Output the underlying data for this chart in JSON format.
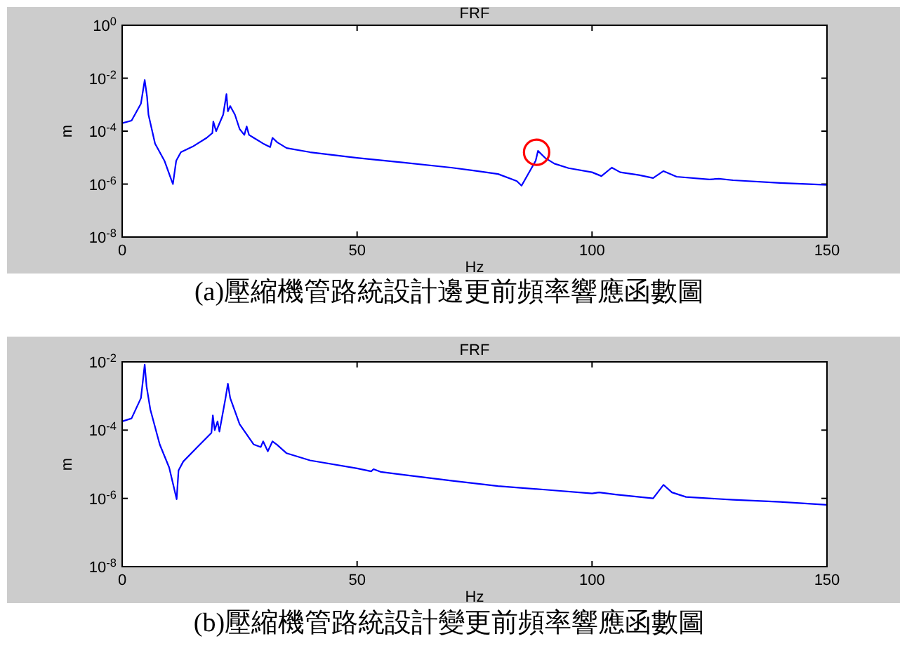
{
  "chart_data": [
    {
      "type": "line",
      "title": "FRF",
      "xlabel": "Hz",
      "ylabel": "m",
      "log": "y",
      "grid": false,
      "marker": "none",
      "line_style": "solid",
      "xlim": [
        0,
        150
      ],
      "xticks": [
        0,
        50,
        100,
        150
      ],
      "ylim": [
        1e-08,
        1
      ],
      "yticks": [
        {
          "value": 1e-08,
          "label": "10$^{-8}$"
        },
        {
          "value": 1e-06,
          "label": "10$^{-6}$"
        },
        {
          "value": 0.0001,
          "label": "10$^{-4}$"
        },
        {
          "value": 0.01,
          "label": "10$^{-2}$"
        },
        {
          "value": 1,
          "label": "10$^{0}$"
        }
      ],
      "x": [
        0,
        2,
        4,
        4.8,
        5.3,
        5.6,
        7,
        9,
        10.8,
        11.5,
        12.5,
        15,
        18,
        19.2,
        19.4,
        20,
        21.5,
        22.2,
        22.5,
        23,
        24,
        25,
        26,
        26.5,
        27,
        28,
        30,
        31.5,
        32,
        33,
        35,
        40,
        50,
        60,
        70,
        75,
        80,
        84,
        85,
        88,
        88.5,
        90,
        92,
        95,
        100,
        102,
        104.2,
        106,
        110,
        113,
        115.2,
        118,
        125,
        127,
        130,
        140,
        150
      ],
      "series": [
        {
          "color": "#0000ff",
          "values": [
            0.0002,
            0.00025,
            0.0011,
            0.0085,
            0.002,
            0.00042,
            3.4e-05,
            7.6e-06,
            1e-06,
            7.6e-06,
            1.6e-05,
            2.6e-05,
            5.6e-05,
            8.5e-05,
            0.00023,
            0.0001,
            0.00042,
            0.0025,
            0.00056,
            0.00089,
            0.00042,
            0.00012,
            7.2e-05,
            0.00015,
            7.2e-05,
            5.6e-05,
            3.4e-05,
            2.5e-05,
            5.6e-05,
            3.8e-05,
            2.3e-05,
            1.6e-05,
            9.8e-06,
            6.5e-06,
            4.2e-06,
            3.2e-06,
            2.4e-06,
            1.3e-06,
            8.7e-07,
            7.6e-06,
            1.8e-05,
            9.8e-06,
            5.9e-06,
            4e-06,
            2.8e-06,
            2e-06,
            4.2e-06,
            2.8e-06,
            2.2e-06,
            1.7e-06,
            3.1e-06,
            1.9e-06,
            1.5e-06,
            1.6e-06,
            1.4e-06,
            1.1e-06,
            9.3e-07
          ]
        }
      ],
      "annotations": [
        "(a)壓縮機管路統設計邊更前頻率響應函數圖"
      ]
    },
    {
      "type": "line",
      "title": "FRF",
      "xlabel": "Hz",
      "ylabel": "m",
      "log": "y",
      "grid": false,
      "marker": "none",
      "line_style": "solid",
      "xlim": [
        0,
        150
      ],
      "xticks": [
        0,
        50,
        100,
        150
      ],
      "ylim": [
        1e-08,
        0.01
      ],
      "yticks": [
        {
          "value": 1e-08,
          "label": "10$^{-8}$"
        },
        {
          "value": 1e-06,
          "label": "10$^{-6}$"
        },
        {
          "value": 0.0001,
          "label": "10$^{-4}$"
        },
        {
          "value": 0.01,
          "label": "10$^{-2}$"
        }
      ],
      "x": [
        0,
        2,
        4,
        4.8,
        5.2,
        6,
        8,
        10,
        11.6,
        12,
        13,
        16,
        19,
        19.3,
        19.7,
        20.3,
        20.7,
        22,
        22.5,
        23,
        25,
        28,
        29.5,
        30,
        31,
        32,
        33,
        35,
        40,
        50,
        53,
        53.5,
        55,
        60,
        70,
        80,
        90,
        100,
        101.5,
        105,
        113,
        115.2,
        117,
        120,
        130,
        140,
        150
      ],
      "series": [
        {
          "color": "#0000ff",
          "values": [
            0.00018,
            0.00022,
            0.00087,
            0.0083,
            0.0019,
            0.0004,
            3.8e-05,
            8.1e-06,
            9.5e-07,
            6.6e-06,
            1.2e-05,
            3.2e-05,
            8.3e-05,
            0.00027,
            0.0001,
            0.00018,
            9.1e-05,
            0.00087,
            0.0023,
            0.00087,
            0.00015,
            3.8e-05,
            3.2e-05,
            4.7e-05,
            2.4e-05,
            4.7e-05,
            3.7e-05,
            2.1e-05,
            1.3e-05,
            7.6e-06,
            6.2e-06,
            7.2e-06,
            6e-06,
            4.9e-06,
            3.3e-06,
            2.3e-06,
            1.8e-06,
            1.4e-06,
            1.5e-06,
            1.3e-06,
            1e-06,
            2.5e-06,
            1.5e-06,
            1.1e-06,
            9.1e-07,
            7.9e-07,
            6.5e-07
          ]
        }
      ],
      "annotations": [
        "(b)壓縮機管路統設計變更前頻率響應函數圖"
      ]
    }
  ]
}
